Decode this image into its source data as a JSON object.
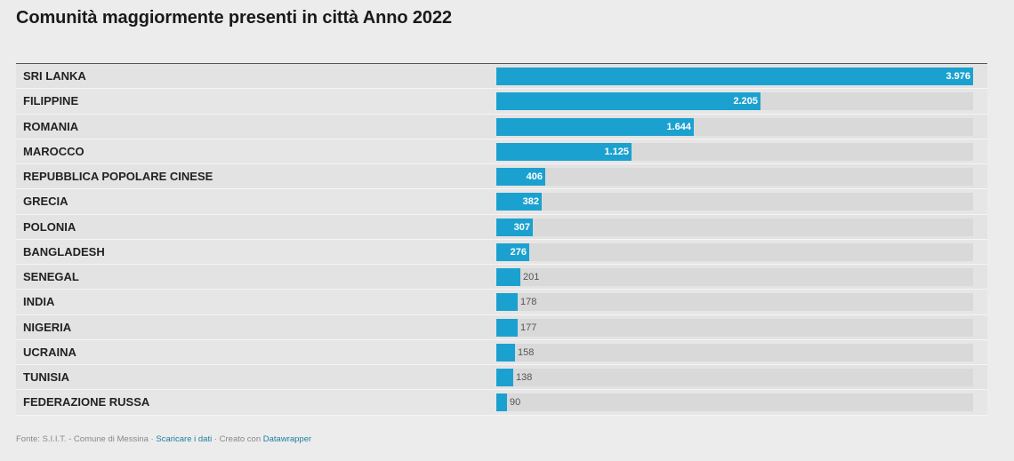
{
  "title": "Comunità maggiormente presenti in città Anno 2022",
  "colors": {
    "bar": "#1ba1cf",
    "track": "#d9d9d9",
    "background": "#ececec"
  },
  "chart_data": {
    "type": "bar",
    "orientation": "horizontal",
    "title": "Comunità maggiormente presenti in città Anno 2022",
    "categories": [
      "SRI LANKA",
      "FILIPPINE",
      "ROMANIA",
      "MAROCCO",
      "REPUBBLICA POPOLARE CINESE",
      "GRECIA",
      "POLONIA",
      "BANGLADESH",
      "SENEGAL",
      "INDIA",
      "NIGERIA",
      "UCRAINA",
      "TUNISIA",
      "FEDERAZIONE RUSSA"
    ],
    "values": [
      3976,
      2205,
      1644,
      1125,
      406,
      382,
      307,
      276,
      201,
      178,
      177,
      158,
      138,
      90
    ],
    "value_labels": [
      "3.976",
      "2.205",
      "1.644",
      "1.125",
      "406",
      "382",
      "307",
      "276",
      "201",
      "178",
      "177",
      "158",
      "138",
      "90"
    ],
    "xlim": [
      0,
      3976
    ],
    "grid": false
  },
  "footer": {
    "source": "Fonte: S.I.I.T. - Comune di Messina",
    "sep1": " · ",
    "download": "Scaricare i dati",
    "sep2": " · Creato con ",
    "tool": "Datawrapper"
  }
}
